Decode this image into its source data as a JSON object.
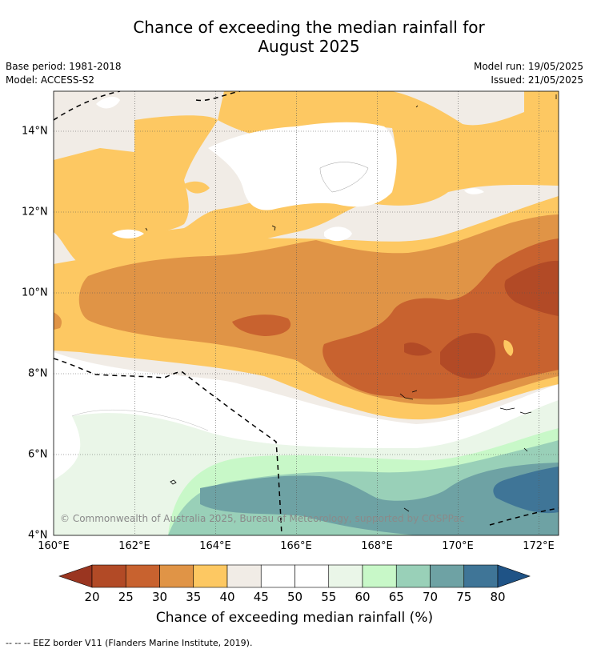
{
  "title_line1": "Chance of exceeding the median rainfall for",
  "title_line2": "August 2025",
  "base_period": "Base period: 1981-2018",
  "model": "Model: ACCESS-S2",
  "model_run": "Model run: 19/05/2025",
  "issued": "Issued: 21/05/2025",
  "copyright": "© Commonwealth of Australia 2025, Bureau of Meteorology, supported by COSPPac",
  "lat_labels": [
    "14°N",
    "12°N",
    "10°N",
    "8°N",
    "6°N",
    "4°N"
  ],
  "lon_labels": [
    "160°E",
    "162°E",
    "164°E",
    "166°E",
    "168°E",
    "170°E",
    "172°E"
  ],
  "colorbar": {
    "ticks": [
      "20",
      "25",
      "30",
      "35",
      "40",
      "45",
      "50",
      "55",
      "60",
      "65",
      "70",
      "75",
      "80"
    ],
    "colors": [
      "#b24a26",
      "#c8622f",
      "#e09446",
      "#fdc862",
      "#f1ece6",
      "#ffffff",
      "#ffffff",
      "#eaf6e8",
      "#c8f8c8",
      "#99d0b8",
      "#6ea2a4",
      "#3f7597"
    ],
    "low_color": "#9a3520",
    "high_color": "#1f5386",
    "label": "Chance of exceeding median rainfall (%)"
  },
  "footnote": "--  --  -- EEZ border V11 (Flanders Marine Institute, 2019)."
}
